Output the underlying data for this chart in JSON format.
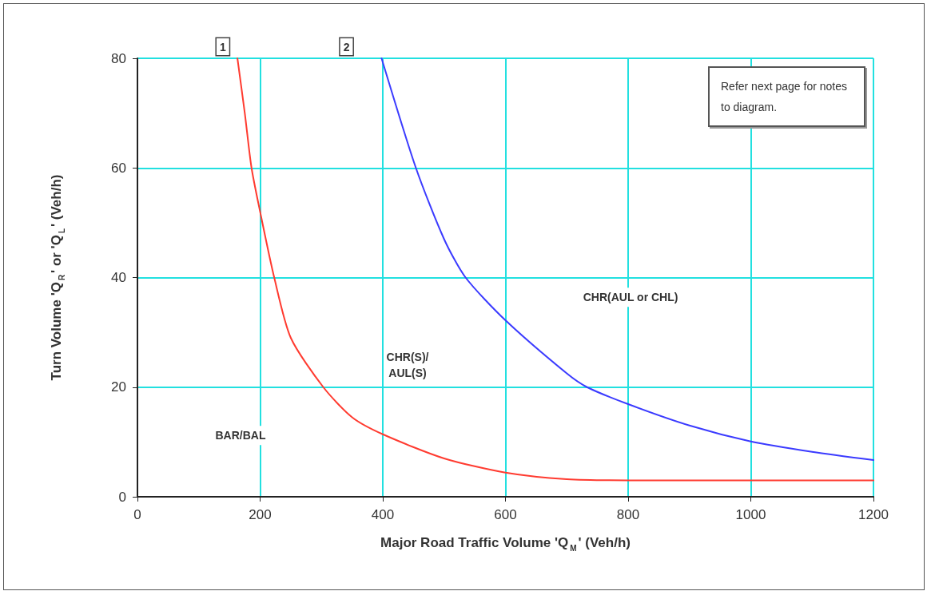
{
  "chart_data": {
    "type": "line",
    "xlabel": "Major Road Traffic Volume 'Q$_{M}$' (Veh/h)",
    "ylabel": "Turn Volume 'Q$_{R}$' or 'Q$_{L}$' (Veh/h)",
    "xlim": [
      0,
      1200
    ],
    "xticks": [
      0,
      200,
      400,
      600,
      800,
      1000,
      1200
    ],
    "ylim": [
      0,
      80
    ],
    "yticks": [
      0,
      20,
      40,
      60,
      80
    ],
    "grid": true,
    "marker": "none",
    "line_style": "solid",
    "series": [
      {
        "color": "#ff3b30",
        "x": [
          163,
          175,
          186,
          200,
          223,
          250,
          303,
          350,
          400,
          500,
          600,
          700,
          800,
          1000,
          1200
        ],
        "values": [
          80,
          70,
          60,
          52,
          40,
          29,
          20,
          14.5,
          11.4,
          7,
          4.4,
          3.2,
          3,
          3,
          3
        ]
      },
      {
        "color": "#3b3bff",
        "x": [
          398,
          454,
          500,
          535,
          600,
          700,
          733,
          800,
          900,
          1000,
          1100,
          1200
        ],
        "values": [
          80,
          60,
          47,
          40,
          32.2,
          22.5,
          20,
          16.9,
          13,
          10.1,
          8.2,
          6.7
        ]
      }
    ],
    "annotations": [
      "1",
      "2",
      "BAR/BAL",
      "CHR(S)/\nAUL(S)",
      "CHR(AUL or CHL)",
      "Refer next page for notes to diagram."
    ]
  }
}
